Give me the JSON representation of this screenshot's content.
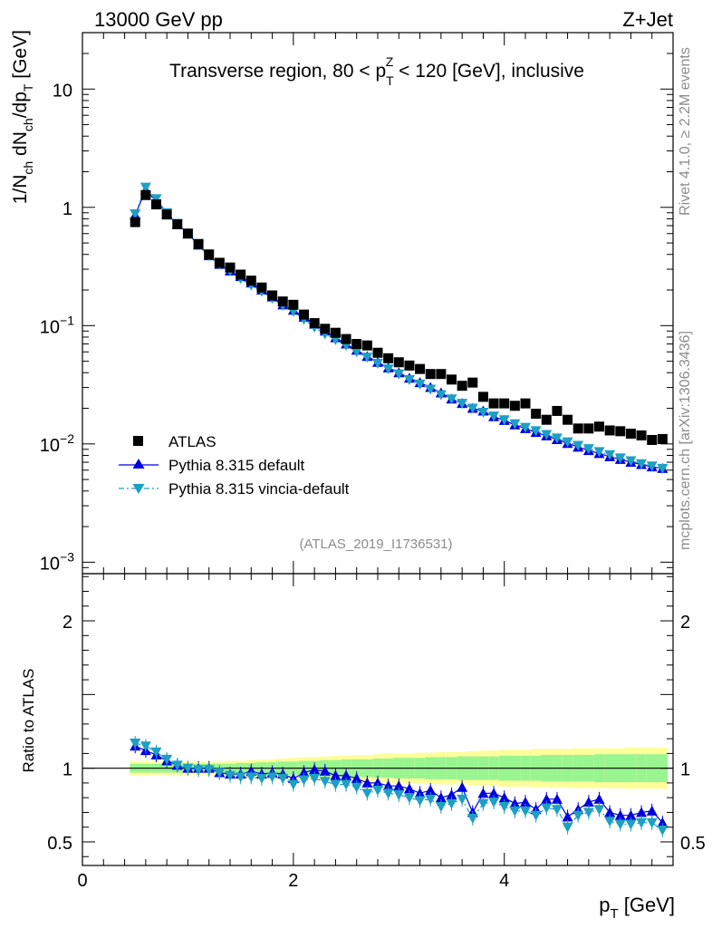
{
  "header": {
    "energy": "13000 GeV pp",
    "process": "Z+Jet"
  },
  "side_labels": {
    "rivet": "Rivet 4.1.0, ≥ 2.2M events",
    "mcplots": "mcplots.cern.ch [arXiv:1306.3436]"
  },
  "colors": {
    "atlas": "#000000",
    "pythia_default": "#0000dd",
    "pythia_vincia": "#1e9fc3",
    "band_inner": "#99f590",
    "band_outer": "#fdfd9a"
  },
  "chart_data": [
    {
      "type": "scatter",
      "title": "Transverse region, 80 < p_T^Z < 120 [GeV], inclusive",
      "title_parts": {
        "left": "Transverse region, 80 < p",
        "sub": "T",
        "sup": "Z",
        "right": " < 120 [GeV], inclusive"
      },
      "ylabel": "1/N_ch dN_ch/dp_T [GeV]",
      "ylabel_parts": {
        "a": "1/N",
        "a_sub": "ch",
        "b": " dN",
        "b_sub": "ch",
        "c": "/dp",
        "c_sub": "T",
        "d": " [GeV]"
      },
      "yscale": "log",
      "ylim": [
        0.0008,
        30
      ],
      "xlim": [
        0,
        5.6
      ],
      "y_ticks": [
        {
          "value": 10,
          "label": "10",
          "exp": ""
        },
        {
          "value": 1,
          "label": "1",
          "exp": ""
        },
        {
          "value": 0.1,
          "label": "10",
          "exp": "−1"
        },
        {
          "value": 0.01,
          "label": "10",
          "exp": "−2"
        },
        {
          "value": 0.001,
          "label": "10",
          "exp": "−3"
        }
      ],
      "analysis_label": "(ATLAS_2019_I1736531)",
      "legend": {
        "position": "left",
        "entries": [
          "ATLAS",
          "Pythia 8.315 default",
          "Pythia 8.315 vincia-default"
        ]
      },
      "x": [
        0.5,
        0.6,
        0.7,
        0.8,
        0.9,
        1.0,
        1.1,
        1.2,
        1.3,
        1.4,
        1.5,
        1.6,
        1.7,
        1.8,
        1.9,
        2.0,
        2.1,
        2.2,
        2.3,
        2.4,
        2.5,
        2.6,
        2.7,
        2.8,
        2.9,
        3.0,
        3.1,
        3.2,
        3.3,
        3.4,
        3.5,
        3.6,
        3.7,
        3.8,
        3.9,
        4.0,
        4.1,
        4.2,
        4.3,
        4.4,
        4.5,
        4.6,
        4.7,
        4.8,
        4.9,
        5.0,
        5.1,
        5.2,
        5.3,
        5.4,
        5.5
      ],
      "series": [
        {
          "name": "ATLAS",
          "marker": "square",
          "values": [
            0.75,
            1.27,
            1.06,
            0.87,
            0.72,
            0.6,
            0.49,
            0.4,
            0.34,
            0.31,
            0.27,
            0.24,
            0.21,
            0.18,
            0.16,
            0.15,
            0.124,
            0.105,
            0.094,
            0.087,
            0.077,
            0.07,
            0.068,
            0.059,
            0.053,
            0.049,
            0.046,
            0.043,
            0.039,
            0.039,
            0.035,
            0.031,
            0.033,
            0.025,
            0.022,
            0.022,
            0.021,
            0.022,
            0.018,
            0.016,
            0.019,
            0.016,
            0.0135,
            0.0135,
            0.014,
            0.013,
            0.0128,
            0.0122,
            0.0118,
            0.0108,
            0.011
          ]
        },
        {
          "name": "Pythia 8.315 default",
          "marker": "triangle-up",
          "values": [
            0.86,
            1.4,
            1.12,
            0.88,
            0.72,
            0.6,
            0.48,
            0.39,
            0.33,
            0.29,
            0.26,
            0.23,
            0.2,
            0.175,
            0.15,
            0.135,
            0.118,
            0.103,
            0.09,
            0.079,
            0.07,
            0.062,
            0.055,
            0.049,
            0.044,
            0.04,
            0.036,
            0.033,
            0.03,
            0.027,
            0.024,
            0.022,
            0.02,
            0.019,
            0.017,
            0.0158,
            0.0145,
            0.0135,
            0.0125,
            0.0117,
            0.0109,
            0.0101,
            0.0094,
            0.0088,
            0.0083,
            0.0078,
            0.0074,
            0.007,
            0.0067,
            0.0064,
            0.0062
          ]
        },
        {
          "name": "Pythia 8.315 vincia-default",
          "marker": "triangle-down",
          "values": [
            0.88,
            1.48,
            1.18,
            0.9,
            0.73,
            0.6,
            0.48,
            0.39,
            0.33,
            0.29,
            0.25,
            0.22,
            0.195,
            0.17,
            0.148,
            0.132,
            0.113,
            0.097,
            0.085,
            0.076,
            0.068,
            0.06,
            0.054,
            0.048,
            0.043,
            0.039,
            0.035,
            0.032,
            0.029,
            0.026,
            0.024,
            0.022,
            0.02,
            0.0185,
            0.0172,
            0.016,
            0.0148,
            0.0138,
            0.0129,
            0.012,
            0.0112,
            0.0104,
            0.0097,
            0.0091,
            0.0086,
            0.0081,
            0.0076,
            0.0072,
            0.0068,
            0.0065,
            0.0062
          ]
        }
      ]
    },
    {
      "type": "scatter",
      "ylabel": "Ratio to ATLAS",
      "xlabel": "p_T [GeV]",
      "xlabel_parts": {
        "a": "p",
        "a_sub": "T",
        "b": " [GeV]"
      },
      "ylim": [
        0.34,
        2.32
      ],
      "xlim": [
        0,
        5.6
      ],
      "y_ticks": [
        {
          "value": 2,
          "label": "2"
        },
        {
          "value": 1,
          "label": "1"
        },
        {
          "value": 0.5,
          "label": "0.5"
        }
      ],
      "x_ticks": [
        {
          "value": 0,
          "label": "0"
        },
        {
          "value": 2,
          "label": "2"
        },
        {
          "value": 4,
          "label": "4"
        }
      ],
      "reference_line": 1,
      "x": [
        0.5,
        0.6,
        0.7,
        0.8,
        0.9,
        1.0,
        1.1,
        1.2,
        1.3,
        1.4,
        1.5,
        1.6,
        1.7,
        1.8,
        1.9,
        2.0,
        2.1,
        2.2,
        2.3,
        2.4,
        2.5,
        2.6,
        2.7,
        2.8,
        2.9,
        3.0,
        3.1,
        3.2,
        3.3,
        3.4,
        3.5,
        3.6,
        3.7,
        3.8,
        3.9,
        4.0,
        4.1,
        4.2,
        4.3,
        4.4,
        4.5,
        4.6,
        4.7,
        4.8,
        4.9,
        5.0,
        5.1,
        5.2,
        5.3,
        5.4,
        5.5
      ],
      "bands": {
        "inner_halfwidth": [
          0.03,
          0.03,
          0.03,
          0.03,
          0.03,
          0.03,
          0.03,
          0.03,
          0.03,
          0.03,
          0.035,
          0.035,
          0.04,
          0.04,
          0.045,
          0.045,
          0.05,
          0.05,
          0.055,
          0.055,
          0.06,
          0.06,
          0.06,
          0.065,
          0.065,
          0.07,
          0.07,
          0.07,
          0.075,
          0.075,
          0.075,
          0.08,
          0.08,
          0.08,
          0.08,
          0.085,
          0.085,
          0.085,
          0.085,
          0.09,
          0.09,
          0.09,
          0.09,
          0.09,
          0.095,
          0.095,
          0.095,
          0.095,
          0.095,
          0.095,
          0.095
        ],
        "outer_halfwidth": [
          0.05,
          0.05,
          0.045,
          0.045,
          0.045,
          0.045,
          0.045,
          0.045,
          0.045,
          0.05,
          0.05,
          0.055,
          0.06,
          0.06,
          0.065,
          0.07,
          0.075,
          0.075,
          0.08,
          0.085,
          0.085,
          0.09,
          0.09,
          0.095,
          0.1,
          0.1,
          0.1,
          0.105,
          0.105,
          0.11,
          0.11,
          0.11,
          0.115,
          0.12,
          0.12,
          0.125,
          0.125,
          0.125,
          0.13,
          0.13,
          0.13,
          0.13,
          0.135,
          0.135,
          0.135,
          0.135,
          0.135,
          0.14,
          0.14,
          0.14,
          0.14
        ]
      },
      "series": [
        {
          "name": "Pythia 8.315 default",
          "marker": "triangle-up",
          "values": [
            1.15,
            1.12,
            1.09,
            1.05,
            1.02,
            1.0,
            1.0,
            1.0,
            0.97,
            0.96,
            0.96,
            0.98,
            0.96,
            0.97,
            0.96,
            0.93,
            0.97,
            0.99,
            0.98,
            0.95,
            0.95,
            0.93,
            0.9,
            0.9,
            0.88,
            0.88,
            0.86,
            0.83,
            0.85,
            0.8,
            0.82,
            0.87,
            0.7,
            0.83,
            0.83,
            0.8,
            0.76,
            0.77,
            0.72,
            0.79,
            0.79,
            0.67,
            0.72,
            0.77,
            0.79,
            0.7,
            0.68,
            0.68,
            0.7,
            0.71,
            0.63
          ]
        },
        {
          "name": "Pythia 8.315 vincia-default",
          "marker": "triangle-down",
          "values": [
            1.17,
            1.15,
            1.11,
            1.06,
            1.02,
            1.0,
            0.99,
            0.99,
            0.97,
            0.95,
            0.94,
            0.94,
            0.93,
            0.94,
            0.93,
            0.89,
            0.92,
            0.93,
            0.91,
            0.89,
            0.89,
            0.87,
            0.83,
            0.85,
            0.83,
            0.82,
            0.8,
            0.78,
            0.79,
            0.74,
            0.76,
            0.79,
            0.66,
            0.76,
            0.77,
            0.74,
            0.71,
            0.71,
            0.68,
            0.73,
            0.72,
            0.6,
            0.68,
            0.7,
            0.72,
            0.64,
            0.62,
            0.62,
            0.63,
            0.63,
            0.58
          ]
        }
      ]
    }
  ]
}
